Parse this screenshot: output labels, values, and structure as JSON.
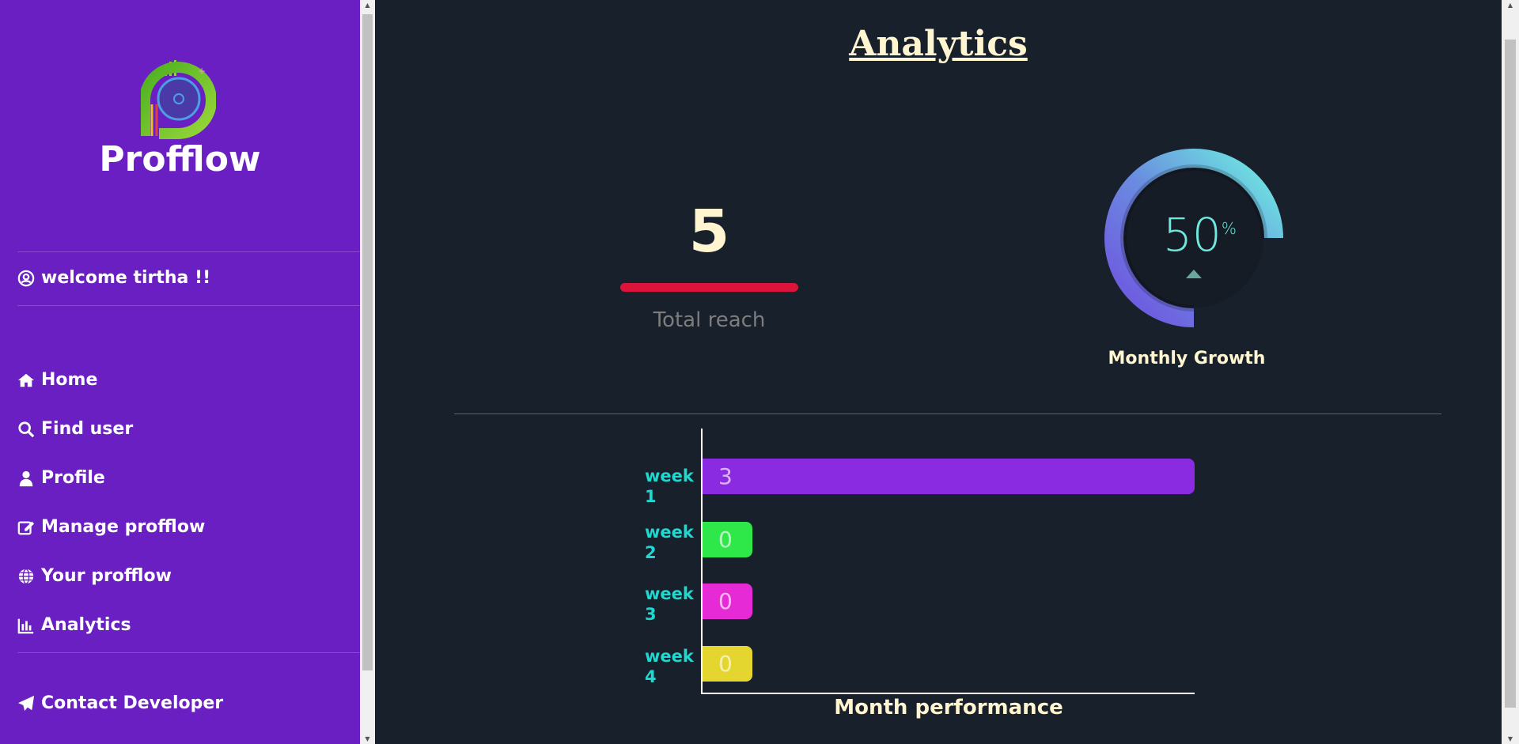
{
  "sidebar": {
    "brand": "Profflow",
    "welcome": "welcome tirtha !!",
    "items": [
      {
        "label": "Home",
        "icon": "home-icon"
      },
      {
        "label": "Find user",
        "icon": "search-icon"
      },
      {
        "label": "Profile",
        "icon": "user-icon"
      },
      {
        "label": "Manage profflow",
        "icon": "edit-icon"
      },
      {
        "label": "Your profflow",
        "icon": "globe-icon"
      },
      {
        "label": "Analytics",
        "icon": "chart-icon"
      }
    ],
    "contact": "Contact Developer"
  },
  "main": {
    "title": "Analytics",
    "total_reach": {
      "value": "5",
      "label": "Total reach"
    },
    "growth": {
      "value": "50",
      "unit": "%",
      "label": "Monthly Growth"
    }
  },
  "chart_data": {
    "type": "bar",
    "orientation": "horizontal",
    "title": "Month performance",
    "categories": [
      "week 1",
      "week 2",
      "week 3",
      "week 4"
    ],
    "values": [
      3,
      0,
      0,
      0
    ],
    "colors": [
      "#8a2be2",
      "#2ee84a",
      "#e62ad6",
      "#e4d62e"
    ],
    "value_colors": [
      "#e0b0ff",
      "#b8f5c0",
      "#f8b8f0",
      "#f5f0b0"
    ]
  }
}
